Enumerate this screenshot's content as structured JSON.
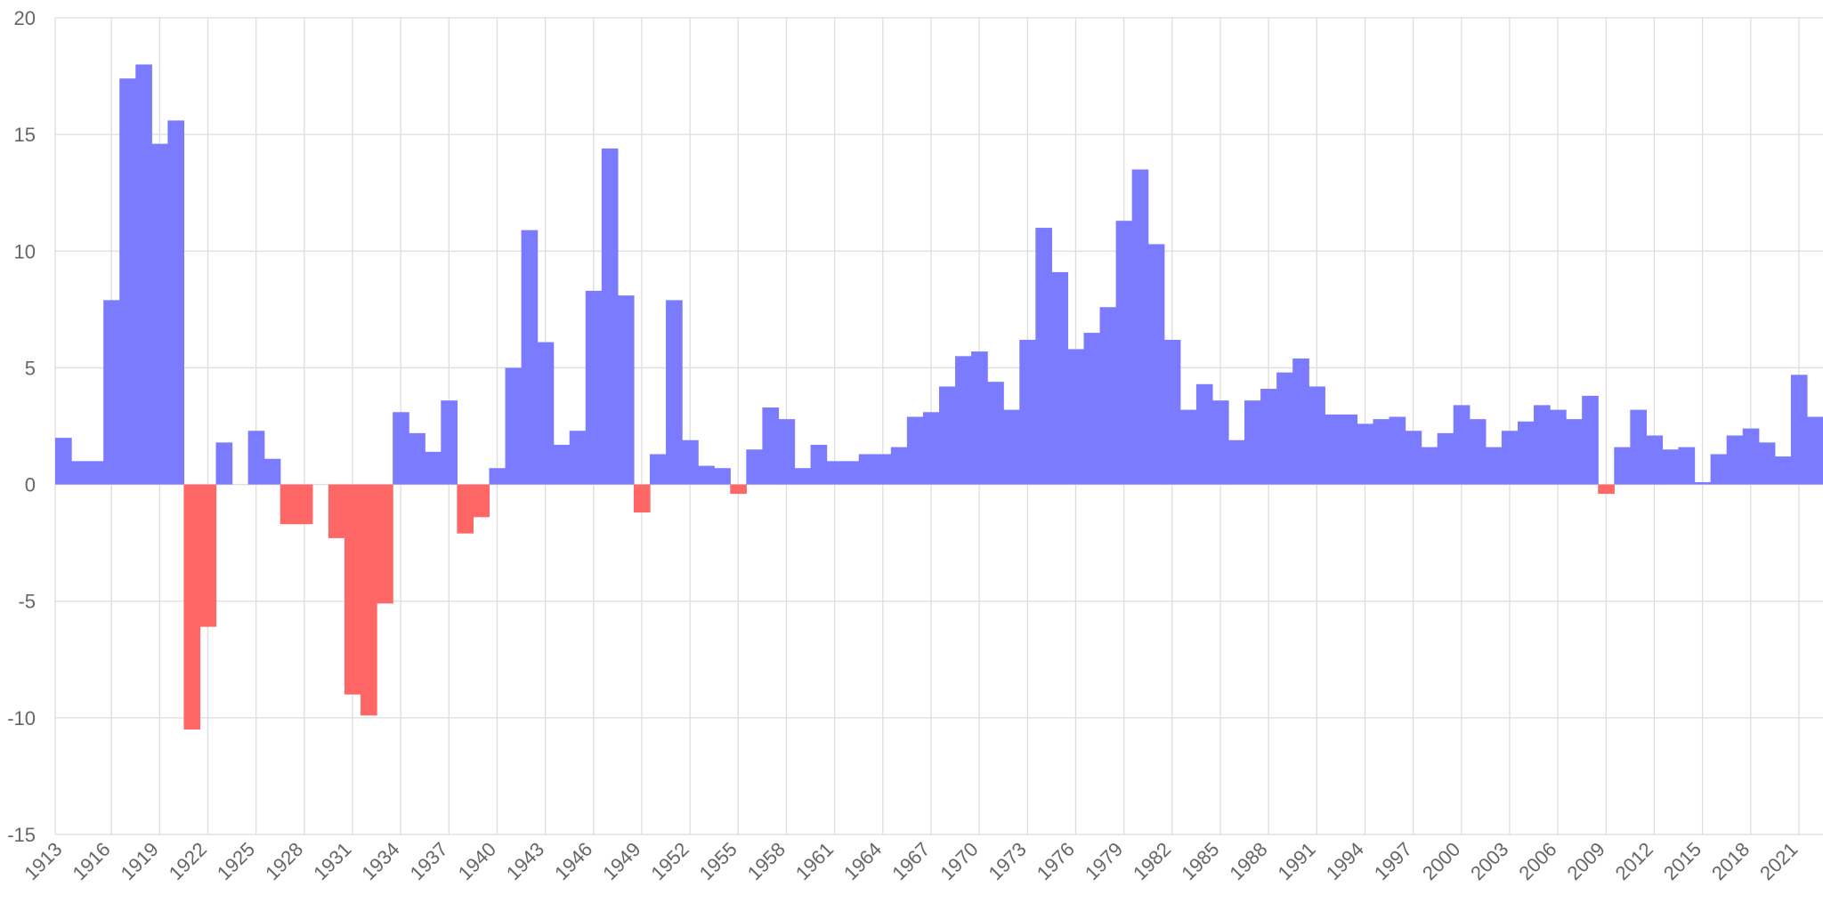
{
  "chart_data": {
    "type": "bar",
    "title": "",
    "xlabel": "",
    "ylabel": "",
    "ylim": [
      -15,
      20
    ],
    "y_ticks": [
      "20",
      "15",
      "10",
      "5",
      "0",
      "-5",
      "-10",
      "-15"
    ],
    "x_tick_labels": [
      "1913",
      "1916",
      "1919",
      "1922",
      "1925",
      "1928",
      "1931",
      "1934",
      "1937",
      "1940",
      "1943",
      "1946",
      "1949",
      "1952",
      "1955",
      "1958",
      "1961",
      "1964",
      "1967",
      "1970",
      "1973",
      "1976",
      "1979",
      "1982",
      "1985",
      "1988",
      "1991",
      "1994",
      "1997",
      "2000",
      "2003",
      "2006",
      "2009",
      "2012",
      "2015",
      "2018",
      "2021"
    ],
    "grid": true,
    "legend": "none",
    "colors": {
      "positive": "#7b7bff",
      "negative": "#ff6666",
      "grid": "#dddddd",
      "text": "#666666"
    },
    "categories": [
      "1913",
      "1914",
      "1915",
      "1916",
      "1917",
      "1918",
      "1919",
      "1920",
      "1921",
      "1922",
      "1923",
      "1924",
      "1925",
      "1926",
      "1927",
      "1928",
      "1929",
      "1930",
      "1931",
      "1932",
      "1933",
      "1934",
      "1935",
      "1936",
      "1937",
      "1938",
      "1939",
      "1940",
      "1941",
      "1942",
      "1943",
      "1944",
      "1945",
      "1946",
      "1947",
      "1948",
      "1949",
      "1950",
      "1951",
      "1952",
      "1953",
      "1954",
      "1955",
      "1956",
      "1957",
      "1958",
      "1959",
      "1960",
      "1961",
      "1962",
      "1963",
      "1964",
      "1965",
      "1966",
      "1967",
      "1968",
      "1969",
      "1970",
      "1971",
      "1972",
      "1973",
      "1974",
      "1975",
      "1976",
      "1977",
      "1978",
      "1979",
      "1980",
      "1981",
      "1982",
      "1983",
      "1984",
      "1985",
      "1986",
      "1987",
      "1988",
      "1989",
      "1990",
      "1991",
      "1992",
      "1993",
      "1994",
      "1995",
      "1996",
      "1997",
      "1998",
      "1999",
      "2000",
      "2001",
      "2002",
      "2003",
      "2004",
      "2005",
      "2006",
      "2007",
      "2008",
      "2009",
      "2010",
      "2011",
      "2012",
      "2013",
      "2014",
      "2015",
      "2016",
      "2017",
      "2018",
      "2019",
      "2020",
      "2021",
      "2022"
    ],
    "values": [
      2.0,
      1.0,
      1.0,
      7.9,
      17.4,
      18.0,
      14.6,
      15.6,
      -10.5,
      -6.1,
      1.8,
      0.0,
      2.3,
      1.1,
      -1.7,
      -1.7,
      0.0,
      -2.3,
      -9.0,
      -9.9,
      -5.1,
      3.1,
      2.2,
      1.4,
      3.6,
      -2.1,
      -1.4,
      0.7,
      5.0,
      10.9,
      6.1,
      1.7,
      2.3,
      8.3,
      14.4,
      8.1,
      -1.2,
      1.3,
      7.9,
      1.9,
      0.8,
      0.7,
      -0.4,
      1.5,
      3.3,
      2.8,
      0.7,
      1.7,
      1.0,
      1.0,
      1.3,
      1.3,
      1.6,
      2.9,
      3.1,
      4.2,
      5.5,
      5.7,
      4.4,
      3.2,
      6.2,
      11.0,
      9.1,
      5.8,
      6.5,
      7.6,
      11.3,
      13.5,
      10.3,
      6.2,
      3.2,
      4.3,
      3.6,
      1.9,
      3.6,
      4.1,
      4.8,
      5.4,
      4.2,
      3.0,
      3.0,
      2.6,
      2.8,
      2.9,
      2.3,
      1.6,
      2.2,
      3.4,
      2.8,
      1.6,
      2.3,
      2.7,
      3.4,
      3.2,
      2.8,
      3.8,
      -0.4,
      1.6,
      3.2,
      2.1,
      1.5,
      1.6,
      0.1,
      1.3,
      2.1,
      2.4,
      1.8,
      1.2,
      4.7,
      2.9
    ]
  }
}
